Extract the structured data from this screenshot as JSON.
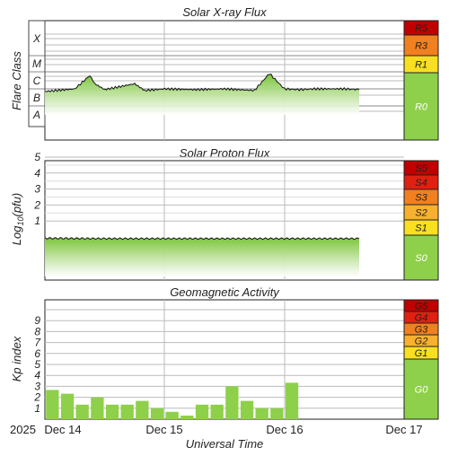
{
  "x_axis": {
    "label": "Universal Time",
    "year": "2025",
    "ticks": [
      "Dec 14",
      "Dec 15",
      "Dec 16",
      "Dec 17"
    ]
  },
  "xray": {
    "title": "Solar X-ray Flux",
    "ylabel": "Flare Class",
    "classes": [
      "X",
      "M",
      "C",
      "B",
      "A"
    ],
    "scale": [
      {
        "label": "R5",
        "color": "#c00000"
      },
      {
        "label": "R3",
        "color": "#f08020"
      },
      {
        "label": "R1",
        "color": "#f8e020"
      },
      {
        "label": "R0",
        "color": "#8ed04a"
      }
    ]
  },
  "proton": {
    "title": "Solar Proton Flux",
    "ylabel": "Log10(pfu)",
    "ticks": [
      "5",
      "4",
      "3",
      "2",
      "1"
    ],
    "scale": [
      {
        "label": "S5",
        "color": "#c00000"
      },
      {
        "label": "S4",
        "color": "#e02010"
      },
      {
        "label": "S3",
        "color": "#f08020"
      },
      {
        "label": "S2",
        "color": "#f8b030"
      },
      {
        "label": "S1",
        "color": "#f8e020"
      },
      {
        "label": "S0",
        "color": "#8ed04a"
      }
    ]
  },
  "kp": {
    "title": "Geomagnetic Activity",
    "ylabel": "Kp index",
    "ticks": [
      "9",
      "8",
      "7",
      "6",
      "5",
      "4",
      "3",
      "2",
      "1"
    ],
    "scale": [
      {
        "label": "G5",
        "color": "#c00000"
      },
      {
        "label": "G4",
        "color": "#e02010"
      },
      {
        "label": "G3",
        "color": "#f08020"
      },
      {
        "label": "G2",
        "color": "#f8b030"
      },
      {
        "label": "G1",
        "color": "#f8e020"
      },
      {
        "label": "G0",
        "color": "#8ed04a"
      }
    ]
  },
  "chart_data": [
    {
      "type": "area",
      "title": "Solar X-ray Flux",
      "ylabel": "Flare Class",
      "x_range": [
        "2025-12-14",
        "2025-12-17"
      ],
      "y_categories": [
        "A",
        "B",
        "C",
        "M",
        "X"
      ],
      "series": [
        {
          "x": [
            "2025-12-14 00:00",
            "2025-12-14 06:00",
            "2025-12-14 09:00",
            "2025-12-14 10:00",
            "2025-12-14 12:00",
            "2025-12-14 18:00",
            "2025-12-14 20:00",
            "2025-12-15 00:00",
            "2025-12-15 06:00",
            "2025-12-15 12:00",
            "2025-12-15 18:00",
            "2025-12-15 21:00",
            "2025-12-16 00:00",
            "2025-12-16 03:00",
            "2025-12-16 06:00",
            "2025-12-16 12:00",
            "2025-12-16 15:00"
          ],
          "values": [
            "B7",
            "C1",
            "C6",
            "C2",
            "B9",
            "C2",
            "B8",
            "C1",
            "B9",
            "C1",
            "B8",
            "C8",
            "C1",
            "B9",
            "C1",
            "C1",
            "B9"
          ]
        }
      ],
      "color": "#8ed04a"
    },
    {
      "type": "area",
      "title": "Solar Proton Flux",
      "ylabel": "Log10(pfu)",
      "x_range": [
        "2025-12-14",
        "2025-12-17"
      ],
      "ylim": [
        -1.3,
        5.9
      ],
      "series": [
        {
          "x": [
            "2025-12-14 00:00",
            "2025-12-14 12:00",
            "2025-12-15 00:00",
            "2025-12-15 12:00",
            "2025-12-16 00:00",
            "2025-12-16 12:00",
            "2025-12-16 15:00"
          ],
          "values": [
            -0.08,
            -0.1,
            -0.1,
            -0.1,
            -0.1,
            -0.1,
            -0.1
          ]
        }
      ],
      "color": "#8ed04a"
    },
    {
      "type": "bar",
      "title": "Geomagnetic Activity",
      "ylabel": "Kp index",
      "ylim": [
        0,
        10
      ],
      "x_range": [
        "2025-12-14",
        "2025-12-17"
      ],
      "categories": [
        "Dec 14 00-03",
        "Dec 14 03-06",
        "Dec 14 06-09",
        "Dec 14 09-12",
        "Dec 14 12-15",
        "Dec 14 15-18",
        "Dec 14 18-21",
        "Dec 14 21-24",
        "Dec 15 00-03",
        "Dec 15 03-06",
        "Dec 15 06-09",
        "Dec 15 09-12",
        "Dec 15 12-15",
        "Dec 15 15-18",
        "Dec 15 18-21",
        "Dec 15 21-24",
        "Dec 16 00-03"
      ],
      "values": [
        2.67,
        2.33,
        1.33,
        2.0,
        1.33,
        1.33,
        1.67,
        1.0,
        0.67,
        0.33,
        1.33,
        1.33,
        3.0,
        1.67,
        1.0,
        1.0,
        3.33
      ],
      "color": "#8ed04a"
    }
  ]
}
